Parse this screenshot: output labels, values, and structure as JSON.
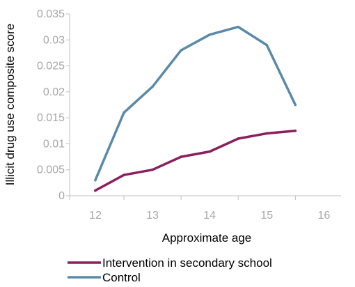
{
  "chart_data": {
    "type": "line",
    "x": [
      12,
      12.5,
      13,
      13.5,
      14,
      14.5,
      15,
      15.5
    ],
    "x_ticks": [
      12,
      13,
      14,
      15,
      16
    ],
    "xlabel": "Approximate age",
    "ylabel": "Illicit drug use composite score",
    "ylim": [
      0,
      0.035
    ],
    "y_ticks": [
      "0",
      "0.005",
      "0.01",
      "0.015",
      "0.02",
      "0.025",
      "0.03",
      "0.035"
    ],
    "grid": false,
    "legend_position": "bottom",
    "series": [
      {
        "name": "Intervention in secondary school",
        "color": "#8b1f5f",
        "values": [
          0.001,
          0.004,
          0.005,
          0.0075,
          0.0085,
          0.011,
          0.012,
          0.0125
        ]
      },
      {
        "name": "Control",
        "color": "#5a8aa8",
        "values": [
          0.003,
          0.016,
          0.021,
          0.028,
          0.031,
          0.0325,
          0.029,
          0.0175
        ]
      }
    ]
  }
}
